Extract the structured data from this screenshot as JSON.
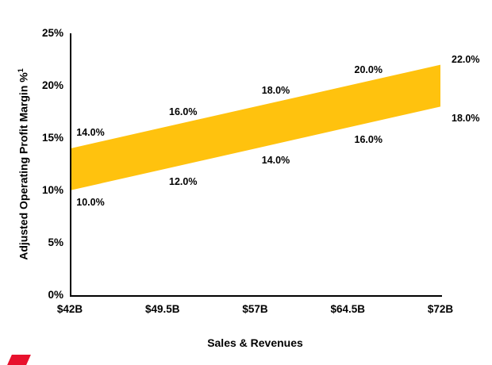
{
  "decor": {
    "corner_accent_color": "#E8112D"
  },
  "chart_data": {
    "type": "area",
    "subtype": "band",
    "title": "",
    "xlabel": "Sales & Revenues",
    "ylabel": "Adjusted Operating Profit Margin %",
    "ylabel_footnote_superscript": "1",
    "categories": [
      "$42B",
      "$49.5B",
      "$57B",
      "$64.5B",
      "$72B"
    ],
    "x_values_billions_usd": [
      42,
      49.5,
      57,
      64.5,
      72
    ],
    "series": [
      {
        "name": "upper-margin-bound",
        "values": [
          14,
          16,
          18,
          20,
          22
        ],
        "labels": [
          "14.0%",
          "16.0%",
          "18.0%",
          "20.0%",
          "22.0%"
        ]
      },
      {
        "name": "lower-margin-bound",
        "values": [
          10,
          12,
          14,
          16,
          18
        ],
        "labels": [
          "10.0%",
          "12.0%",
          "14.0%",
          "16.0%",
          "18.0%"
        ]
      }
    ],
    "y_ticks": [
      {
        "value": 0,
        "label": "0%"
      },
      {
        "value": 5,
        "label": "5%"
      },
      {
        "value": 10,
        "label": "10%"
      },
      {
        "value": 15,
        "label": "15%"
      },
      {
        "value": 20,
        "label": "20%"
      },
      {
        "value": 25,
        "label": "25%"
      }
    ],
    "ylim": [
      0,
      25
    ],
    "band_color": "#FFC20E",
    "grid": false,
    "legend_position": "none"
  }
}
